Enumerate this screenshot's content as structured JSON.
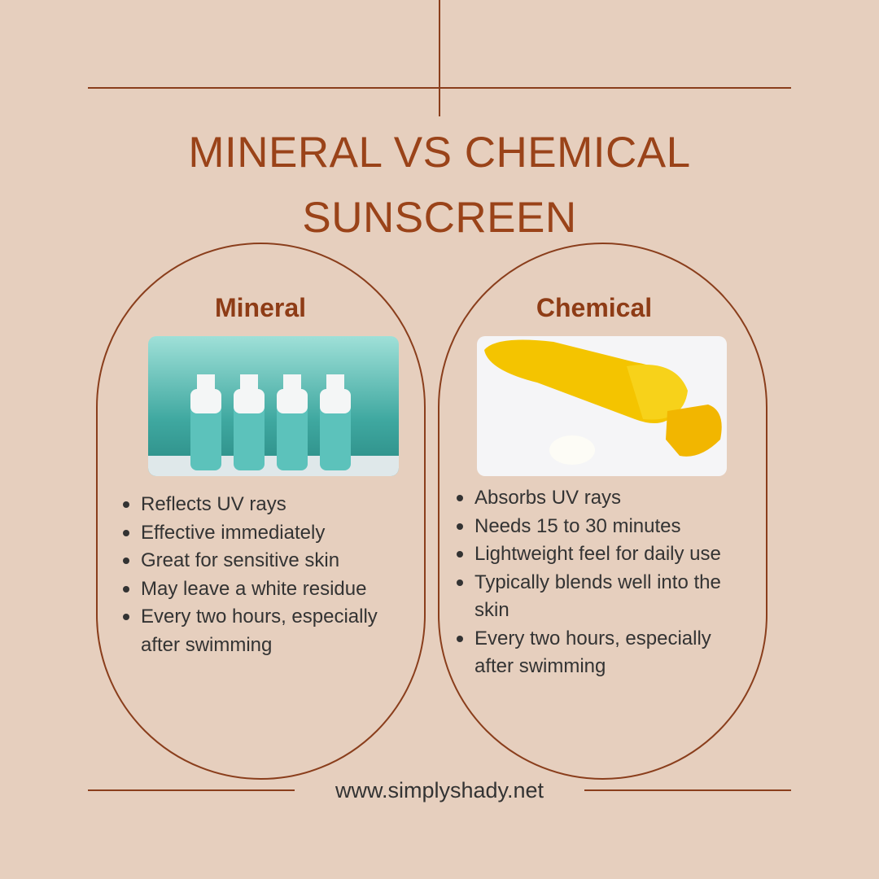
{
  "header": {
    "title": "MINERAL VS CHEMICAL SUNSCREEN"
  },
  "columns": [
    {
      "heading": "Mineral",
      "points": [
        "Reflects UV rays",
        "Effective immediately",
        "Great for sensitive skin",
        "May leave a white residue",
        "Every two hours, especially after swimming"
      ]
    },
    {
      "heading": "Chemical",
      "points": [
        "Absorbs UV rays",
        "Needs 15 to 30 minutes",
        "Lightweight feel for daily use",
        "Typically blends well into the skin",
        "Every two hours, especially after swimming"
      ]
    }
  ],
  "footer": {
    "url": "www.simplyshady.net"
  }
}
